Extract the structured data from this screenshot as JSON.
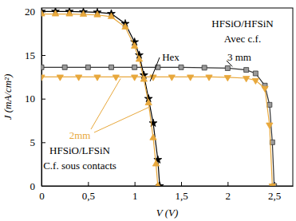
{
  "chart_data": {
    "type": "line",
    "x_label": "V (V)",
    "y_label": "J (mA/cm²)",
    "xlim": [
      0,
      2.7
    ],
    "ylim": [
      0,
      20.4
    ],
    "xticks": [
      0,
      {
        "value": 0.5,
        "label": "0,5"
      },
      1,
      {
        "value": 1.5,
        "label": "1,5"
      },
      2,
      {
        "value": 2.5,
        "label": "2,5"
      }
    ],
    "yticks": [
      0,
      5,
      10,
      15,
      20
    ],
    "grid": false,
    "annotations": [
      "HFSiO/HFSiN",
      "Avec c.f.",
      "Hex",
      "3 mm",
      "2mm",
      "HFSiO/LFSiN",
      "C.f. sous contacts"
    ],
    "series": [
      {
        "color": "#000000",
        "marker": "star",
        "x": [
          0,
          0.15,
          0.3,
          0.45,
          0.6,
          0.75,
          0.9,
          1.0,
          1.05,
          1.1,
          1.15,
          1.2,
          1.25,
          1.27
        ],
        "values": [
          20,
          20,
          20,
          19.95,
          19.9,
          19.75,
          18.6,
          16.5,
          15,
          12.7,
          10,
          7.2,
          3,
          0
        ]
      },
      {
        "color": "#e8a83c",
        "marker": "triangle-up",
        "x": [
          0,
          0.15,
          0.3,
          0.45,
          0.6,
          0.75,
          0.9,
          1.0,
          1.05,
          1.1,
          1.15,
          1.2,
          1.23,
          1.25
        ],
        "values": [
          19.7,
          19.7,
          19.7,
          19.65,
          19.6,
          19.4,
          18.2,
          16,
          14.5,
          12.2,
          9.5,
          5.5,
          2.5,
          0
        ]
      },
      {
        "color": "#9a9a9a",
        "marker": "square",
        "x": [
          0,
          0.25,
          0.5,
          0.75,
          1,
          1.25,
          1.5,
          1.75,
          2,
          2.2,
          2.3,
          2.4,
          2.45,
          2.48,
          2.5
        ],
        "values": [
          13.6,
          13.6,
          13.6,
          13.6,
          13.6,
          13.6,
          13.6,
          13.55,
          13.5,
          13.3,
          12.9,
          11.5,
          9.3,
          5,
          0
        ]
      },
      {
        "color": "#e8a83c",
        "marker": "triangle-down",
        "x": [
          0,
          0.2,
          0.4,
          0.6,
          0.8,
          1,
          1.2,
          1.4,
          1.6,
          1.8,
          2,
          2.2,
          2.3,
          2.4,
          2.45,
          2.48
        ],
        "values": [
          12.5,
          12.5,
          12.5,
          12.5,
          12.5,
          12.5,
          12.5,
          12.5,
          12.5,
          12.5,
          12.45,
          12.35,
          12.1,
          11.2,
          7,
          0
        ]
      }
    ]
  }
}
